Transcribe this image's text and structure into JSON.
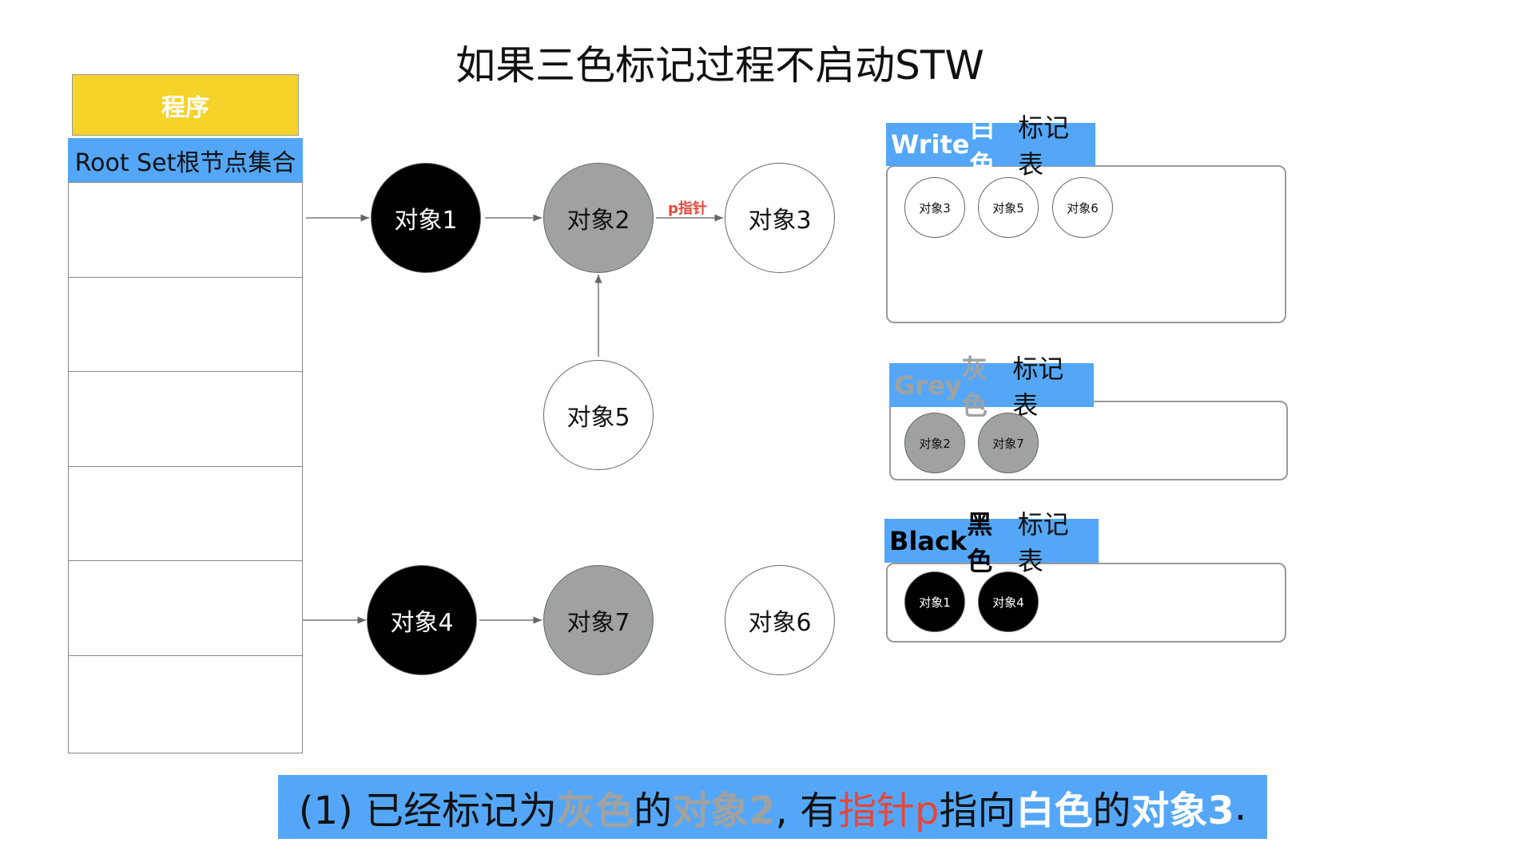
{
  "title": "如果三色标记过程不启动STW",
  "program": {
    "label": "程序",
    "color": "#F5D328"
  },
  "root_set": {
    "label": "Root Set根节点集合",
    "rows": 6
  },
  "objects": {
    "o1": "对象1",
    "o2": "对象2",
    "o3": "对象3",
    "o4": "对象4",
    "o5": "对象5",
    "o6": "对象6",
    "o7": "对象7"
  },
  "pointer_label": "p指针",
  "tables": {
    "white": {
      "title_en": "Write ",
      "title_color": "白色",
      "title_rest": "标记表",
      "items": [
        "对象3",
        "对象5",
        "对象6"
      ]
    },
    "grey": {
      "title_en": "Grey ",
      "title_color": "灰色",
      "title_rest": "标记表",
      "items": [
        "对象2",
        "对象7"
      ]
    },
    "black": {
      "title_en": "Black ",
      "title_color": "黑色",
      "title_rest": "标记表",
      "items": [
        "对象1",
        "对象4"
      ]
    }
  },
  "caption": {
    "p1": "(1) 已经标记为",
    "p2": "灰色",
    "p3": "的",
    "p4": "对象2",
    "p5": ", 有",
    "p6": "指针p",
    "p7": "指向",
    "p8": "白色",
    "p9": "的",
    "p10": "对象3",
    "p11": "."
  },
  "colors": {
    "blue": "#54A7F8",
    "grey": "#A0A2A1",
    "red": "#E8463A",
    "black": "#000000"
  }
}
